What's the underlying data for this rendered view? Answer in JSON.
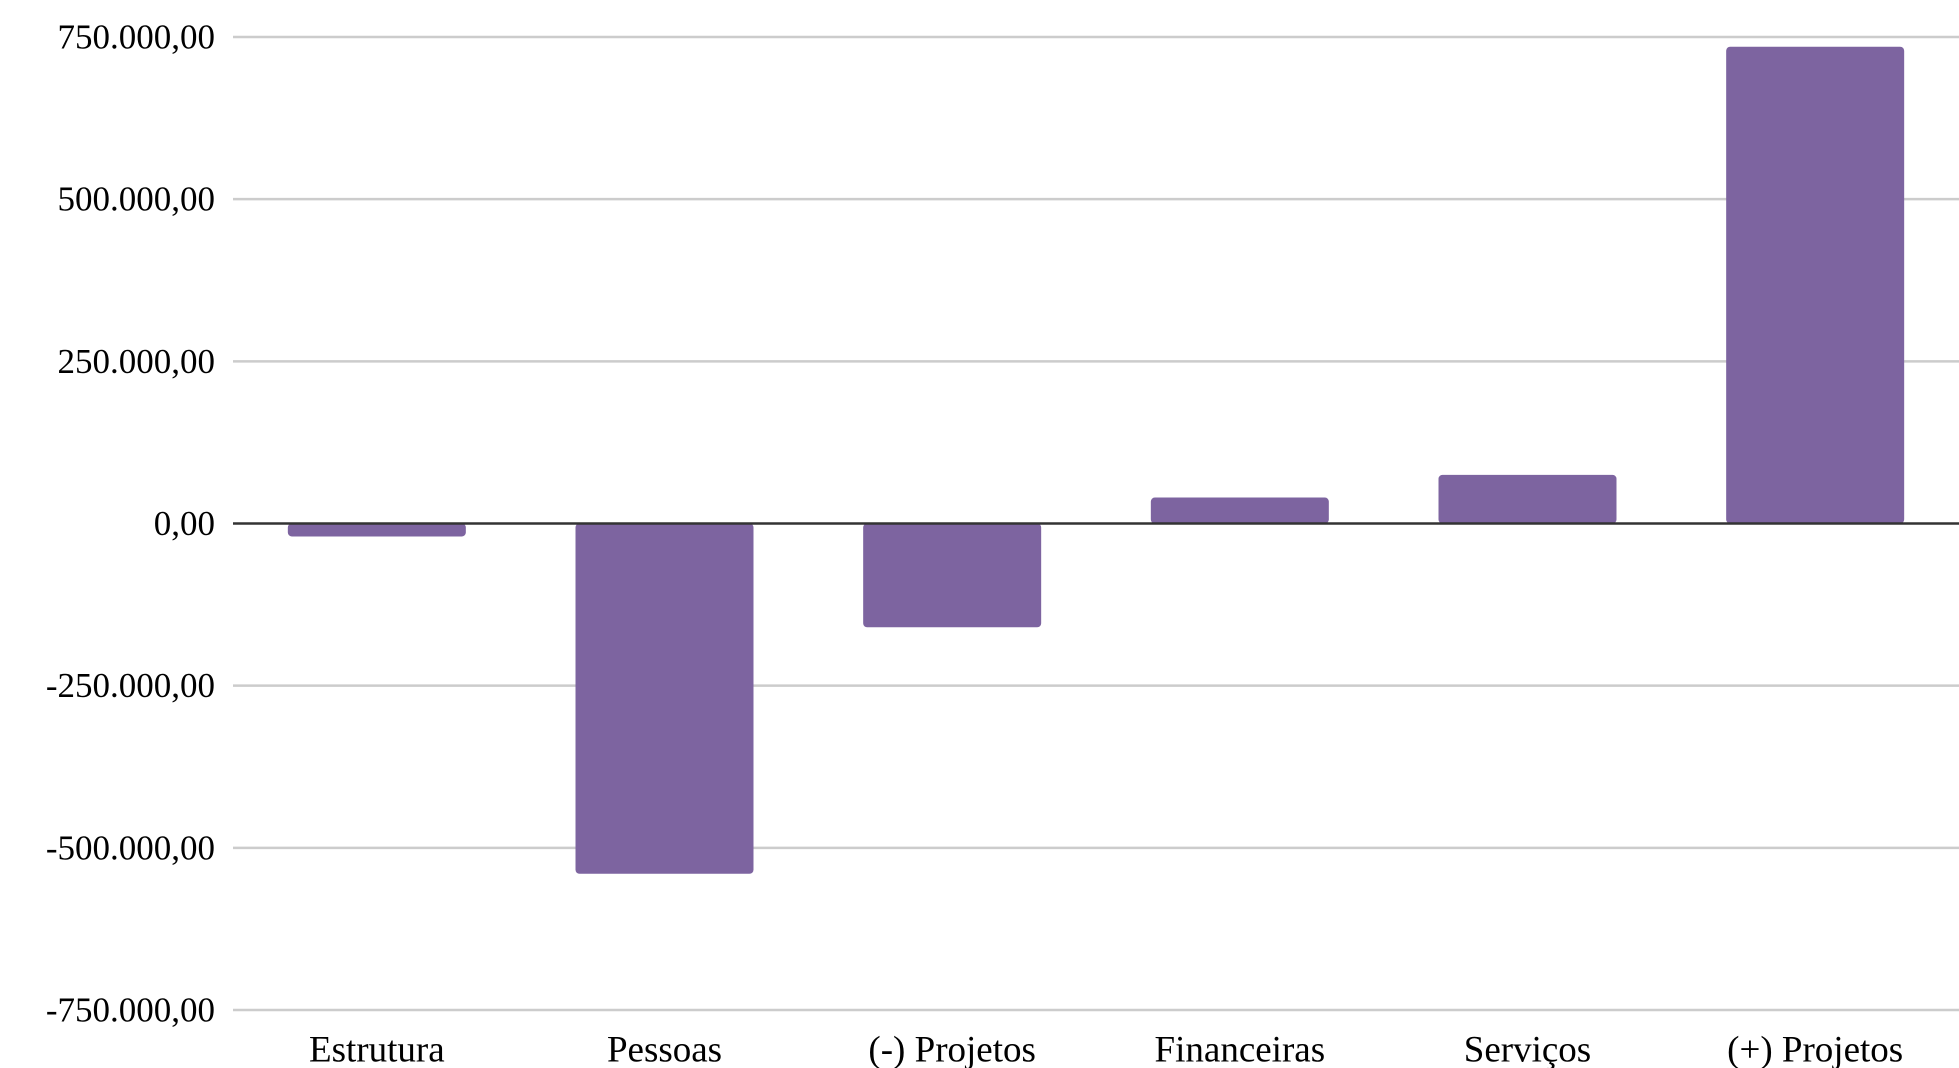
{
  "chart_data": {
    "type": "bar",
    "title": "",
    "xlabel": "",
    "ylabel": "",
    "categories": [
      "Estrutura",
      "Pessoas",
      "(-) Projetos",
      "Financeiras",
      "Serviços",
      "(+) Projetos"
    ],
    "values": [
      -20000,
      -540000,
      -160000,
      40000,
      75000,
      735000
    ],
    "ylim": [
      -750000,
      750000
    ],
    "yticks": [
      750000,
      500000,
      250000,
      0,
      -250000,
      -500000,
      -750000
    ],
    "ytick_labels": [
      "750.000,00",
      "500.000,00",
      "250.000,00",
      "0,00",
      "-250.000,00",
      "-500.000,00",
      "-750.000,00"
    ],
    "grid": true,
    "legend": "none",
    "bar_color": "#7d64a0"
  }
}
